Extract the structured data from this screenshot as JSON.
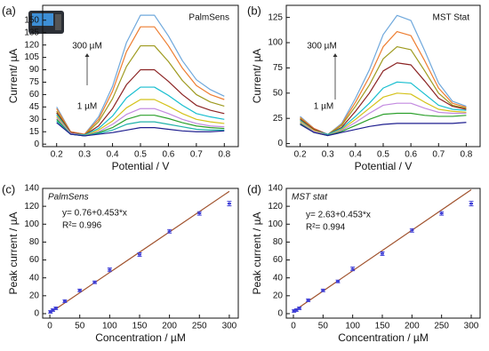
{
  "chart_data": [
    {
      "type": "line",
      "panel_label": "(a)",
      "title": "PalmSens",
      "x_label": "Potential / V",
      "y_label": "Current/ µA",
      "annotations": [
        "300 µM",
        "1 µM"
      ],
      "xlim": [
        0.15,
        0.85
      ],
      "xticks": [
        0.2,
        0.3,
        0.4,
        0.5,
        0.6,
        0.7,
        0.8
      ],
      "ylim": [
        -3,
        168
      ],
      "yticks": [
        0,
        15,
        30,
        45,
        60,
        75,
        90,
        105,
        120,
        135,
        150
      ],
      "x": [
        0.2,
        0.25,
        0.3,
        0.35,
        0.4,
        0.45,
        0.5,
        0.55,
        0.6,
        0.65,
        0.7,
        0.75,
        0.8
      ],
      "series": [
        {
          "color": "#6fa8dc",
          "values": [
            45,
            15,
            12,
            33,
            70,
            123,
            156,
            156,
            131,
            101,
            78,
            66,
            58
          ]
        },
        {
          "color": "#ed7d31",
          "values": [
            43,
            15,
            12,
            30,
            64,
            112,
            142,
            142,
            119,
            92,
            71,
            60,
            54
          ]
        },
        {
          "color": "#9e9a1f",
          "values": [
            40,
            14,
            11,
            27,
            55,
            94,
            119,
            119,
            100,
            77,
            60,
            51,
            46
          ]
        },
        {
          "color": "#8b2323",
          "values": [
            38,
            14,
            11,
            22,
            43,
            72,
            90,
            90,
            76,
            60,
            47,
            41,
            37
          ]
        },
        {
          "color": "#17becf",
          "values": [
            36,
            13,
            11,
            19,
            34,
            56,
            69,
            69,
            59,
            47,
            37,
            33,
            30
          ]
        },
        {
          "color": "#d4c21a",
          "values": [
            34,
            13,
            10,
            17,
            28,
            44,
            54,
            54,
            46,
            37,
            30,
            27,
            25
          ]
        },
        {
          "color": "#c38ae0",
          "values": [
            32,
            13,
            10,
            15,
            24,
            36,
            43,
            43,
            37,
            30,
            25,
            22,
            21
          ]
        },
        {
          "color": "#2ca02c",
          "values": [
            30,
            12,
            10,
            14,
            20,
            30,
            35,
            35,
            31,
            26,
            22,
            20,
            19
          ]
        },
        {
          "color": "#20b2aa",
          "values": [
            28,
            12,
            10,
            13,
            17,
            24,
            27,
            27,
            24,
            21,
            18,
            17,
            17
          ]
        },
        {
          "color": "#1f1f8f",
          "values": [
            26,
            12,
            10,
            12,
            14,
            17,
            20,
            20,
            18,
            16,
            15,
            15,
            16
          ]
        }
      ]
    },
    {
      "type": "line",
      "panel_label": "(b)",
      "title": "MST Stat",
      "x_label": "Potential / V",
      "y_label": "Current/ µA",
      "annotations": [
        "300 µM",
        "1 µM"
      ],
      "xlim": [
        0.15,
        0.85
      ],
      "xticks": [
        0.2,
        0.3,
        0.4,
        0.5,
        0.6,
        0.7,
        0.8
      ],
      "ylim": [
        -3,
        137
      ],
      "yticks": [
        0,
        25,
        50,
        75,
        100,
        125
      ],
      "x": [
        0.2,
        0.25,
        0.3,
        0.35,
        0.4,
        0.45,
        0.5,
        0.55,
        0.6,
        0.65,
        0.7,
        0.75,
        0.8
      ],
      "series": [
        {
          "color": "#6fa8dc",
          "values": [
            27,
            15,
            9,
            20,
            45,
            73,
            108,
            127,
            122,
            92,
            60,
            42,
            37
          ]
        },
        {
          "color": "#ed7d31",
          "values": [
            26,
            15,
            9,
            19,
            41,
            66,
            96,
            111,
            107,
            82,
            55,
            40,
            36
          ]
        },
        {
          "color": "#9e9a1f",
          "values": [
            25,
            14,
            9,
            18,
            37,
            58,
            84,
            96,
            93,
            72,
            50,
            38,
            35
          ]
        },
        {
          "color": "#8b2323",
          "values": [
            24,
            14,
            9,
            16,
            32,
            50,
            72,
            80,
            78,
            62,
            45,
            37,
            34
          ]
        },
        {
          "color": "#17becf",
          "values": [
            23,
            13,
            9,
            15,
            27,
            40,
            55,
            61,
            60,
            49,
            38,
            34,
            33
          ]
        },
        {
          "color": "#d4c21a",
          "values": [
            22,
            13,
            8,
            14,
            24,
            35,
            46,
            50,
            49,
            41,
            34,
            32,
            31
          ]
        },
        {
          "color": "#c38ae0",
          "values": [
            21,
            12,
            8,
            13,
            21,
            30,
            38,
            40,
            40,
            35,
            31,
            30,
            30
          ]
        },
        {
          "color": "#2ca02c",
          "values": [
            20,
            11,
            8,
            12,
            18,
            24,
            29,
            30,
            30,
            28,
            27,
            27,
            28
          ]
        },
        {
          "color": "#1f1f8f",
          "values": [
            19,
            11,
            8,
            11,
            14,
            17,
            19,
            20,
            20,
            20,
            20,
            20,
            21
          ]
        }
      ]
    },
    {
      "type": "scatter",
      "panel_label": "(c)",
      "title": "PalmSens",
      "x_label": "Concentration / µM",
      "y_label": "Peak current / µA",
      "annotations": [
        "y= 0.76+0.453*x",
        "R²= 0.996"
      ],
      "xlim": [
        -12,
        315
      ],
      "xticks": [
        0,
        50,
        100,
        150,
        200,
        250,
        300
      ],
      "ylim": [
        -5,
        140
      ],
      "yticks": [
        0,
        20,
        40,
        60,
        80,
        100,
        120,
        140
      ],
      "x": [
        1,
        5,
        10,
        25,
        50,
        75,
        100,
        150,
        200,
        250,
        300
      ],
      "values": [
        2,
        4,
        6,
        14,
        26,
        35,
        49,
        66,
        92,
        112,
        123
      ],
      "errors": [
        1.5,
        1.5,
        1.5,
        1.5,
        1.5,
        1.5,
        2,
        2,
        2,
        2,
        2.5
      ],
      "color": "#3b3bd6",
      "fit": {
        "x": [
          0,
          300
        ],
        "y": [
          0.76,
          136.66
        ],
        "color": "#a0522d"
      }
    },
    {
      "type": "scatter",
      "panel_label": "(d)",
      "title": "MST stat",
      "x_label": "Concentration / µM",
      "y_label": "Peak current / µA",
      "annotations": [
        "y= 2.63+0.453*x",
        "R²= 0.994"
      ],
      "xlim": [
        -12,
        315
      ],
      "xticks": [
        0,
        50,
        100,
        150,
        200,
        250,
        300
      ],
      "ylim": [
        -5,
        140
      ],
      "yticks": [
        0,
        20,
        40,
        60,
        80,
        100,
        120,
        140
      ],
      "x": [
        1,
        5,
        10,
        25,
        50,
        75,
        100,
        150,
        200,
        250,
        300
      ],
      "values": [
        3,
        4,
        6,
        15,
        26,
        36,
        50,
        67,
        93,
        112,
        123
      ],
      "errors": [
        1.5,
        1.5,
        1.5,
        1.5,
        1.5,
        1.5,
        2,
        2,
        2,
        2,
        2.5
      ],
      "color": "#3b3bd6",
      "fit": {
        "x": [
          0,
          300
        ],
        "y": [
          2.63,
          138.53
        ],
        "color": "#a0522d"
      }
    }
  ]
}
